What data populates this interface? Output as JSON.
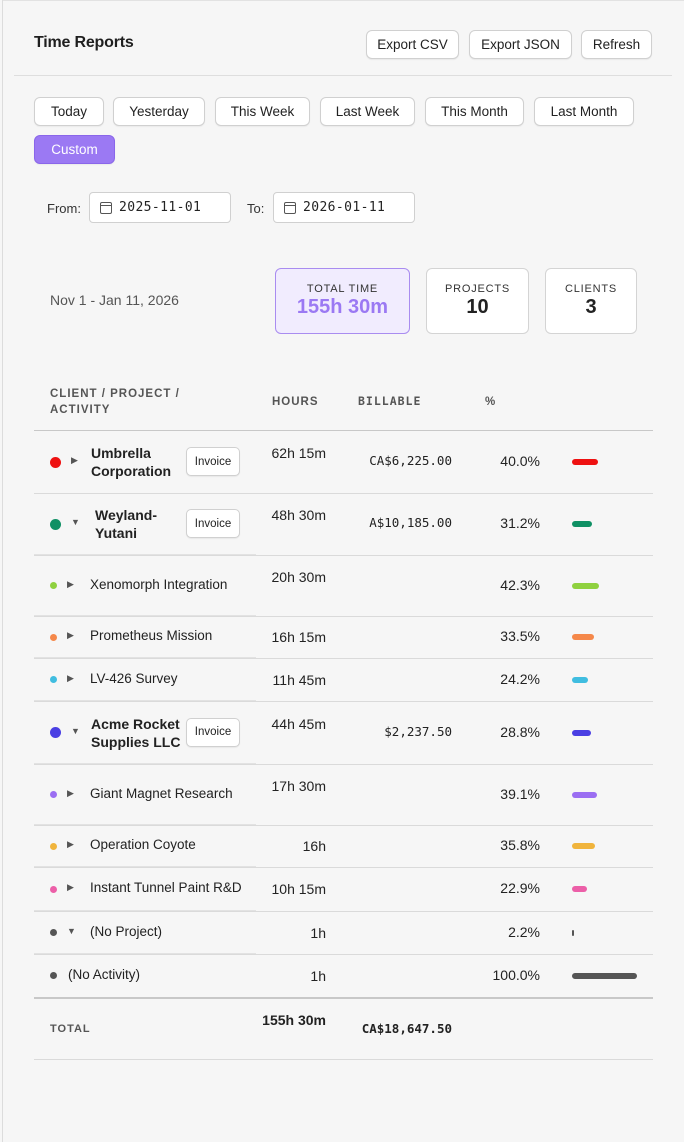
{
  "header": {
    "title": "Time Reports",
    "export_csv": "Export CSV",
    "export_json": "Export JSON",
    "refresh": "Refresh"
  },
  "ranges": [
    "Today",
    "Yesterday",
    "This Week",
    "Last Week",
    "This Month",
    "Last Month",
    "Custom"
  ],
  "active_range": "Custom",
  "filters": {
    "from_label": "From:",
    "from_value": "2025-11-01",
    "to_label": "To:",
    "to_value": "2026-01-11"
  },
  "summary": {
    "range_text": "Nov 1 - Jan 11, 2026",
    "total_time_label": "TOTAL TIME",
    "total_time_value": "155h 30m",
    "projects_label": "PROJECTS",
    "projects_value": "10",
    "clients_label": "CLIENTS",
    "clients_value": "3"
  },
  "table": {
    "headers": {
      "name": "CLIENT / PROJECT / ACTIVITY",
      "hours": "HOURS",
      "billable": "BILLABLE",
      "percent": "%"
    },
    "invoice_label": "Invoice",
    "rows": [
      {
        "level": "client",
        "name": "Umbrella Corporation",
        "hours": "62h 15m",
        "billable": "CA$6,225.00",
        "percent": "40.0%",
        "fraction": 0.4,
        "color": "#ee1111",
        "expanded": false
      },
      {
        "level": "client",
        "name": "Weyland-Yutani",
        "hours": "48h 30m",
        "billable": "A$10,185.00",
        "percent": "31.2%",
        "fraction": 0.312,
        "color": "#0f9064",
        "expanded": true
      },
      {
        "level": "project",
        "name": "Xenomorph Integration",
        "hours": "20h 30m",
        "billable": "",
        "percent": "42.3%",
        "fraction": 0.423,
        "color": "#8fd13f"
      },
      {
        "level": "project",
        "name": "Prometheus Mission",
        "hours": "16h 15m",
        "billable": "",
        "percent": "33.5%",
        "fraction": 0.335,
        "color": "#f5884a"
      },
      {
        "level": "project",
        "name": "LV-426 Survey",
        "hours": "11h 45m",
        "billable": "",
        "percent": "24.2%",
        "fraction": 0.242,
        "color": "#40bde0"
      },
      {
        "level": "client",
        "name": "Acme Rocket Supplies LLC",
        "hours": "44h 45m",
        "billable": "$2,237.50",
        "percent": "28.8%",
        "fraction": 0.288,
        "color": "#4a3fe3",
        "expanded": true
      },
      {
        "level": "project",
        "name": "Giant Magnet Research",
        "hours": "17h 30m",
        "billable": "",
        "percent": "39.1%",
        "fraction": 0.391,
        "color": "#9b6ef2"
      },
      {
        "level": "project",
        "name": "Operation Coyote",
        "hours": "16h",
        "billable": "",
        "percent": "35.8%",
        "fraction": 0.358,
        "color": "#f0b43c"
      },
      {
        "level": "project",
        "name": "Instant Tunnel Paint R&D",
        "hours": "10h 15m",
        "billable": "",
        "percent": "22.9%",
        "fraction": 0.229,
        "color": "#ec5fa8"
      },
      {
        "level": "project",
        "name": "(No Project)",
        "hours": "1h",
        "billable": "",
        "percent": "2.2%",
        "fraction": 0.022,
        "color": "#555555",
        "expanded": true
      },
      {
        "level": "activity",
        "name": "(No Activity)",
        "hours": "1h",
        "billable": "",
        "percent": "100.0%",
        "fraction": 1.0,
        "color": "#555555"
      }
    ],
    "total": {
      "label": "TOTAL",
      "hours": "155h 30m",
      "billable": "CA$18,647.50"
    }
  }
}
